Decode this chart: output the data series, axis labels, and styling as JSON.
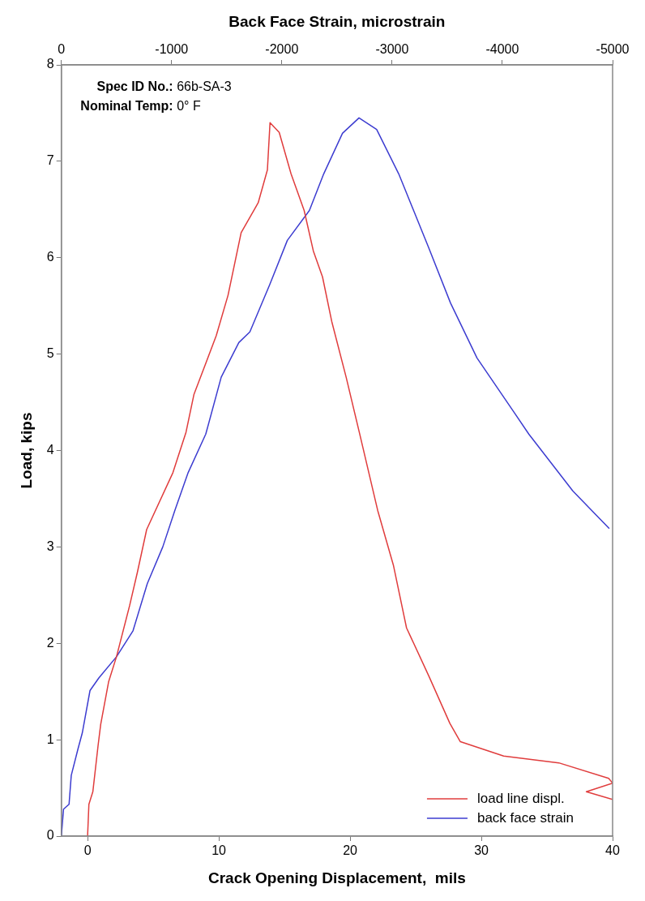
{
  "chart_data": {
    "type": "line",
    "xlabel": "Crack Opening Displacement,  mils",
    "ylabel": "Load, kips",
    "x2label": "Back Face Strain, microstrain",
    "xlim": [
      -2,
      40
    ],
    "xticks": [
      0,
      10,
      20,
      30,
      40
    ],
    "x2lim": [
      0,
      -5000
    ],
    "x2ticks": [
      0,
      -1000,
      -2000,
      -3000,
      -4000,
      -5000
    ],
    "ylim": [
      0,
      8
    ],
    "yticks": [
      0,
      1,
      2,
      3,
      4,
      5,
      6,
      7,
      8
    ],
    "grid": false,
    "legend": "bottom right",
    "marker": "none",
    "line_style": "solid",
    "annotations": [
      "Spec ID No.: 66b-SA-3",
      "Nominal Temp: 0° F"
    ],
    "series": [
      {
        "name": "load line displ.",
        "color": "#e03c3c",
        "x": [
          0,
          0.1,
          0.4,
          0.8,
          1.0,
          1.6,
          2.2,
          3.2,
          3.8,
          4.5,
          6.5,
          7.5,
          8.1,
          9.8,
          10.7,
          11.7,
          13.0,
          13.7,
          13.9,
          14.6,
          15.5,
          16.5,
          17.2,
          17.9,
          18.6,
          19.7,
          20.7,
          22.1,
          23.3,
          24.3,
          26.0,
          27.6,
          28.4,
          31.7,
          35.9,
          39.7,
          40,
          38,
          40
        ],
        "values": [
          0,
          0.33,
          0.46,
          0.94,
          1.16,
          1.6,
          1.86,
          2.39,
          2.74,
          3.18,
          3.77,
          4.19,
          4.58,
          5.19,
          5.61,
          6.26,
          6.57,
          6.91,
          7.4,
          7.3,
          6.87,
          6.49,
          6.07,
          5.8,
          5.34,
          4.76,
          4.19,
          3.38,
          2.81,
          2.16,
          1.66,
          1.17,
          0.98,
          0.83,
          0.76,
          0.6,
          0.55,
          0.46,
          0.38
        ]
      },
      {
        "name": "back face strain",
        "color": "#3c3cd0",
        "axis": "x2",
        "x": [
          0,
          -20,
          -70,
          -90,
          -150,
          -190,
          -260,
          -340,
          -500,
          -650,
          -780,
          -920,
          -1030,
          -1150,
          -1310,
          -1450,
          -1610,
          -1710,
          -1890,
          -2050,
          -2250,
          -2380,
          -2550,
          -2700,
          -2860,
          -3060,
          -3330,
          -3530,
          -3770,
          -4110,
          -4240,
          -4640,
          -4970
        ],
        "values": [
          0,
          0.28,
          0.33,
          0.63,
          0.9,
          1.07,
          1.51,
          1.64,
          1.86,
          2.13,
          2.62,
          3.0,
          3.38,
          3.77,
          4.17,
          4.76,
          5.12,
          5.23,
          5.72,
          6.18,
          6.49,
          6.87,
          7.29,
          7.45,
          7.33,
          6.87,
          6.11,
          5.53,
          4.96,
          4.39,
          4.17,
          3.58,
          3.19
        ]
      }
    ]
  }
}
